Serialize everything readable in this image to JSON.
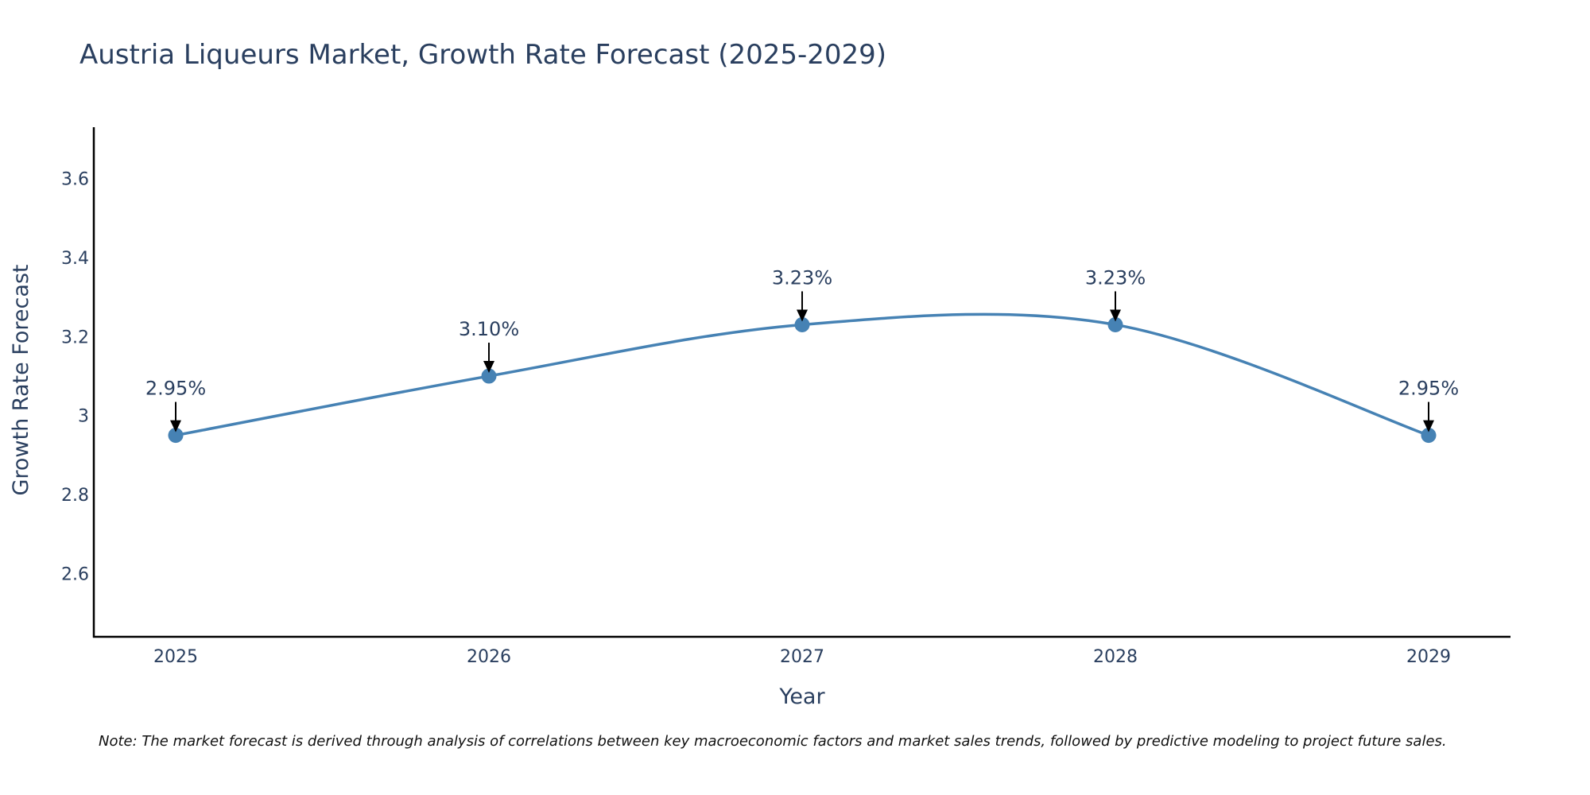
{
  "chart_data": {
    "type": "line",
    "title": "Austria Liqueurs Market, Growth Rate Forecast (2025-2029)",
    "xlabel": "Year",
    "ylabel": "Growth Rate Forecast",
    "categories": [
      "2025",
      "2026",
      "2027",
      "2028",
      "2029"
    ],
    "series": [
      {
        "name": "Growth Rate Forecast",
        "values": [
          2.95,
          3.1,
          3.23,
          3.23,
          2.95
        ],
        "labels": [
          "2.95%",
          "3.10%",
          "3.23%",
          "3.23%",
          "2.95%"
        ]
      }
    ],
    "yticks": [
      "2.6",
      "2.8",
      "3",
      "3.2",
      "3.4",
      "3.6"
    ],
    "ytick_values": [
      2.6,
      2.8,
      3.0,
      3.2,
      3.4,
      3.6
    ],
    "ylim": [
      2.44,
      3.73
    ],
    "grid": false,
    "line_shape": "spline",
    "colors": {
      "line": "#4682b4",
      "marker": "#4682b4",
      "text": "#2a3f5f",
      "axis": "#000000",
      "arrow": "#000000",
      "note": "#111111"
    },
    "note": "Note: The market forecast is derived through analysis of correlations between key macroeconomic factors and market sales trends, followed by predictive modeling to project future sales."
  }
}
